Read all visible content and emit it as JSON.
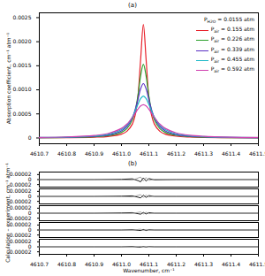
{
  "chart_data": [
    {
      "type": "line",
      "title": "(a)",
      "y_label": "Absorption coefficient, cm⁻¹ atm⁻¹",
      "legend_title": "PH2O = 0.0155 atm",
      "legend": "upper right",
      "grid": false,
      "xlim": [
        4610.7,
        4611.5
      ],
      "xticks": [
        4610.7,
        4610.8,
        4610.9,
        {
          "value": 4611.0,
          "label": "4611.0"
        },
        4611.1,
        4611.2,
        4611.3,
        4611.4,
        4611.5
      ],
      "ylim": [
        -0.00012,
        0.0026
      ],
      "yticks": [
        0,
        0.0005,
        {
          "value": 0.001,
          "label": "0.0010"
        },
        0.0015,
        {
          "value": 0.002,
          "label": "0.0020"
        },
        0.0025
      ],
      "x": [
        4610.7,
        4610.8,
        4610.9,
        4610.95,
        4611.0,
        4611.02,
        4611.04,
        4611.05,
        4611.06,
        4611.07,
        4611.08,
        4611.09,
        4611.1,
        4611.11,
        4611.12,
        4611.14,
        4611.16,
        4611.2,
        4611.25,
        4611.3,
        4611.4,
        4611.5
      ],
      "series": [
        {
          "name": "Pair = 0.155 atm",
          "color": "#e8202a",
          "values": [
            3.7e-06,
            6.8e-06,
            1.63e-05,
            3.1e-05,
            8.01e-05,
            0.000139,
            0.000291,
            0.000472,
            0.00085,
            0.00163,
            0.00236,
            0.00163,
            0.00085,
            0.000472,
            0.000291,
            0.000139,
            8.01e-05,
            3.63e-05,
            1.82e-05,
            1.09e-05,
            5.2e-06,
            3e-06
          ]
        },
        {
          "name": "Pair = 0.226 atm",
          "color": "#2ca02c",
          "values": [
            5.6e-06,
            1.03e-05,
            2.46e-05,
            4.64e-05,
            0.000117,
            0.000196,
            0.00038,
            0.000566,
            0.000871,
            0.00129,
            0.00153,
            0.00129,
            0.000871,
            0.000566,
            0.00038,
            0.000196,
            0.000117,
            5.42e-05,
            2.75e-05,
            1.65e-05,
            7.9e-06,
            4.6e-06
          ]
        },
        {
          "name": "Pair = 0.339 atm",
          "color": "#5a2fc4",
          "values": [
            7.5e-06,
            1.37e-05,
            3.25e-05,
            6.08e-05,
            0.000148,
            0.000238,
            0.000424,
            0.000584,
            0.000798,
            0.001023,
            0.00113,
            0.001023,
            0.000798,
            0.000584,
            0.000424,
            0.000238,
            0.000148,
            7.07e-05,
            3.64e-05,
            2.2e-05,
            1.05e-05,
            6.1e-06
          ]
        },
        {
          "name": "Pair = 0.455 atm",
          "color": "#20b8c8",
          "values": [
            9.5e-06,
            1.74e-05,
            4.09e-05,
            7.52e-05,
            0.000174,
            0.000268,
            0.000435,
            0.000557,
            0.000696,
            0.000819,
            0.00087,
            0.000819,
            0.000696,
            0.000557,
            0.000435,
            0.000268,
            0.000174,
            8.7e-05,
            4.56e-05,
            2.78e-05,
            1.34e-05,
            7.8e-06
          ]
        },
        {
          "name": "Pair = 0.592 atm",
          "color": "#d040b0",
          "values": [
            1.22e-05,
            2.21e-05,
            5.13e-05,
            9.2e-05,
            0.000199,
            0.000289,
            0.000427,
            0.000513,
            0.000598,
            0.000664,
            0.00069,
            0.000664,
            0.000598,
            0.000513,
            0.000427,
            0.000289,
            0.000199,
            0.000106,
            5.69e-05,
            3.52e-05,
            1.71e-05,
            1e-05
          ]
        }
      ]
    },
    {
      "type": "line",
      "title": "(b)",
      "x_label": "Wavenumber, cm⁻¹",
      "y_label": "Calculation – experiment, cm⁻¹ atm⁻¹",
      "grid": false,
      "xlim": [
        4610.7,
        4611.5
      ],
      "xticks": [
        4610.7,
        4610.8,
        4610.9,
        {
          "value": 4611.0,
          "label": "4611.0"
        },
        4611.1,
        4611.2,
        4611.3,
        4611.4,
        4611.5
      ],
      "ylim": [
        -3e-05,
        3e-05
      ],
      "yticks": [
        -2e-05,
        0,
        2e-05
      ],
      "x": [
        4610.7,
        4610.9,
        4611.0,
        4611.04,
        4611.06,
        4611.07,
        4611.08,
        4611.09,
        4611.1,
        4611.12,
        4611.2,
        4611.5
      ],
      "panels": [
        {
          "series": [
            {
              "color": "#000000",
              "values": [
                0,
                0,
                1e-06,
                3e-06,
                -4e-06,
                -9e-06,
                7e-06,
                -6e-06,
                4e-06,
                -1e-06,
                0,
                0
              ]
            },
            {
              "color": "#999999",
              "values": [
                0,
                0,
                -1e-06,
                -2e-06,
                6e-06,
                1e-05,
                -5e-06,
                8e-06,
                -3e-06,
                1e-06,
                0,
                0
              ]
            }
          ]
        },
        {
          "series": [
            {
              "color": "#000000",
              "values": [
                0,
                0,
                1e-06,
                2e-06,
                -3e-06,
                -6e-06,
                5e-06,
                -4e-06,
                3e-06,
                0,
                0,
                0
              ]
            },
            {
              "color": "#999999",
              "values": [
                0,
                0,
                -1e-06,
                -2e-06,
                4e-06,
                7e-06,
                -4e-06,
                5e-06,
                -2e-06,
                1e-06,
                0,
                0
              ]
            }
          ]
        },
        {
          "series": [
            {
              "color": "#000000",
              "values": [
                0,
                0,
                1e-06,
                2e-06,
                -2e-06,
                -4e-06,
                3e-06,
                -3e-06,
                2e-06,
                0,
                0,
                0
              ]
            },
            {
              "color": "#999999",
              "values": [
                0,
                0,
                -1e-06,
                -1e-06,
                3e-06,
                5e-06,
                -3e-06,
                4e-06,
                -2e-06,
                0,
                0,
                0
              ]
            }
          ]
        },
        {
          "series": [
            {
              "color": "#000000",
              "values": [
                0,
                0,
                0,
                1e-06,
                -1e-06,
                -2e-06,
                2e-06,
                -2e-06,
                1e-06,
                0,
                0,
                0
              ]
            },
            {
              "color": "#999999",
              "values": [
                0,
                0,
                0,
                -1e-06,
                2e-06,
                3e-06,
                -2e-06,
                2e-06,
                -1e-06,
                0,
                0,
                0
              ]
            }
          ]
        },
        {
          "series": [
            {
              "color": "#000000",
              "values": [
                0,
                0,
                0,
                1e-06,
                -1e-06,
                -1e-06,
                1e-06,
                -1e-06,
                1e-06,
                0,
                0,
                0
              ]
            },
            {
              "color": "#999999",
              "values": [
                0,
                0,
                0,
                -1e-06,
                1e-06,
                2e-06,
                -1e-06,
                1e-06,
                0,
                0,
                0,
                0
              ]
            }
          ]
        }
      ]
    }
  ]
}
